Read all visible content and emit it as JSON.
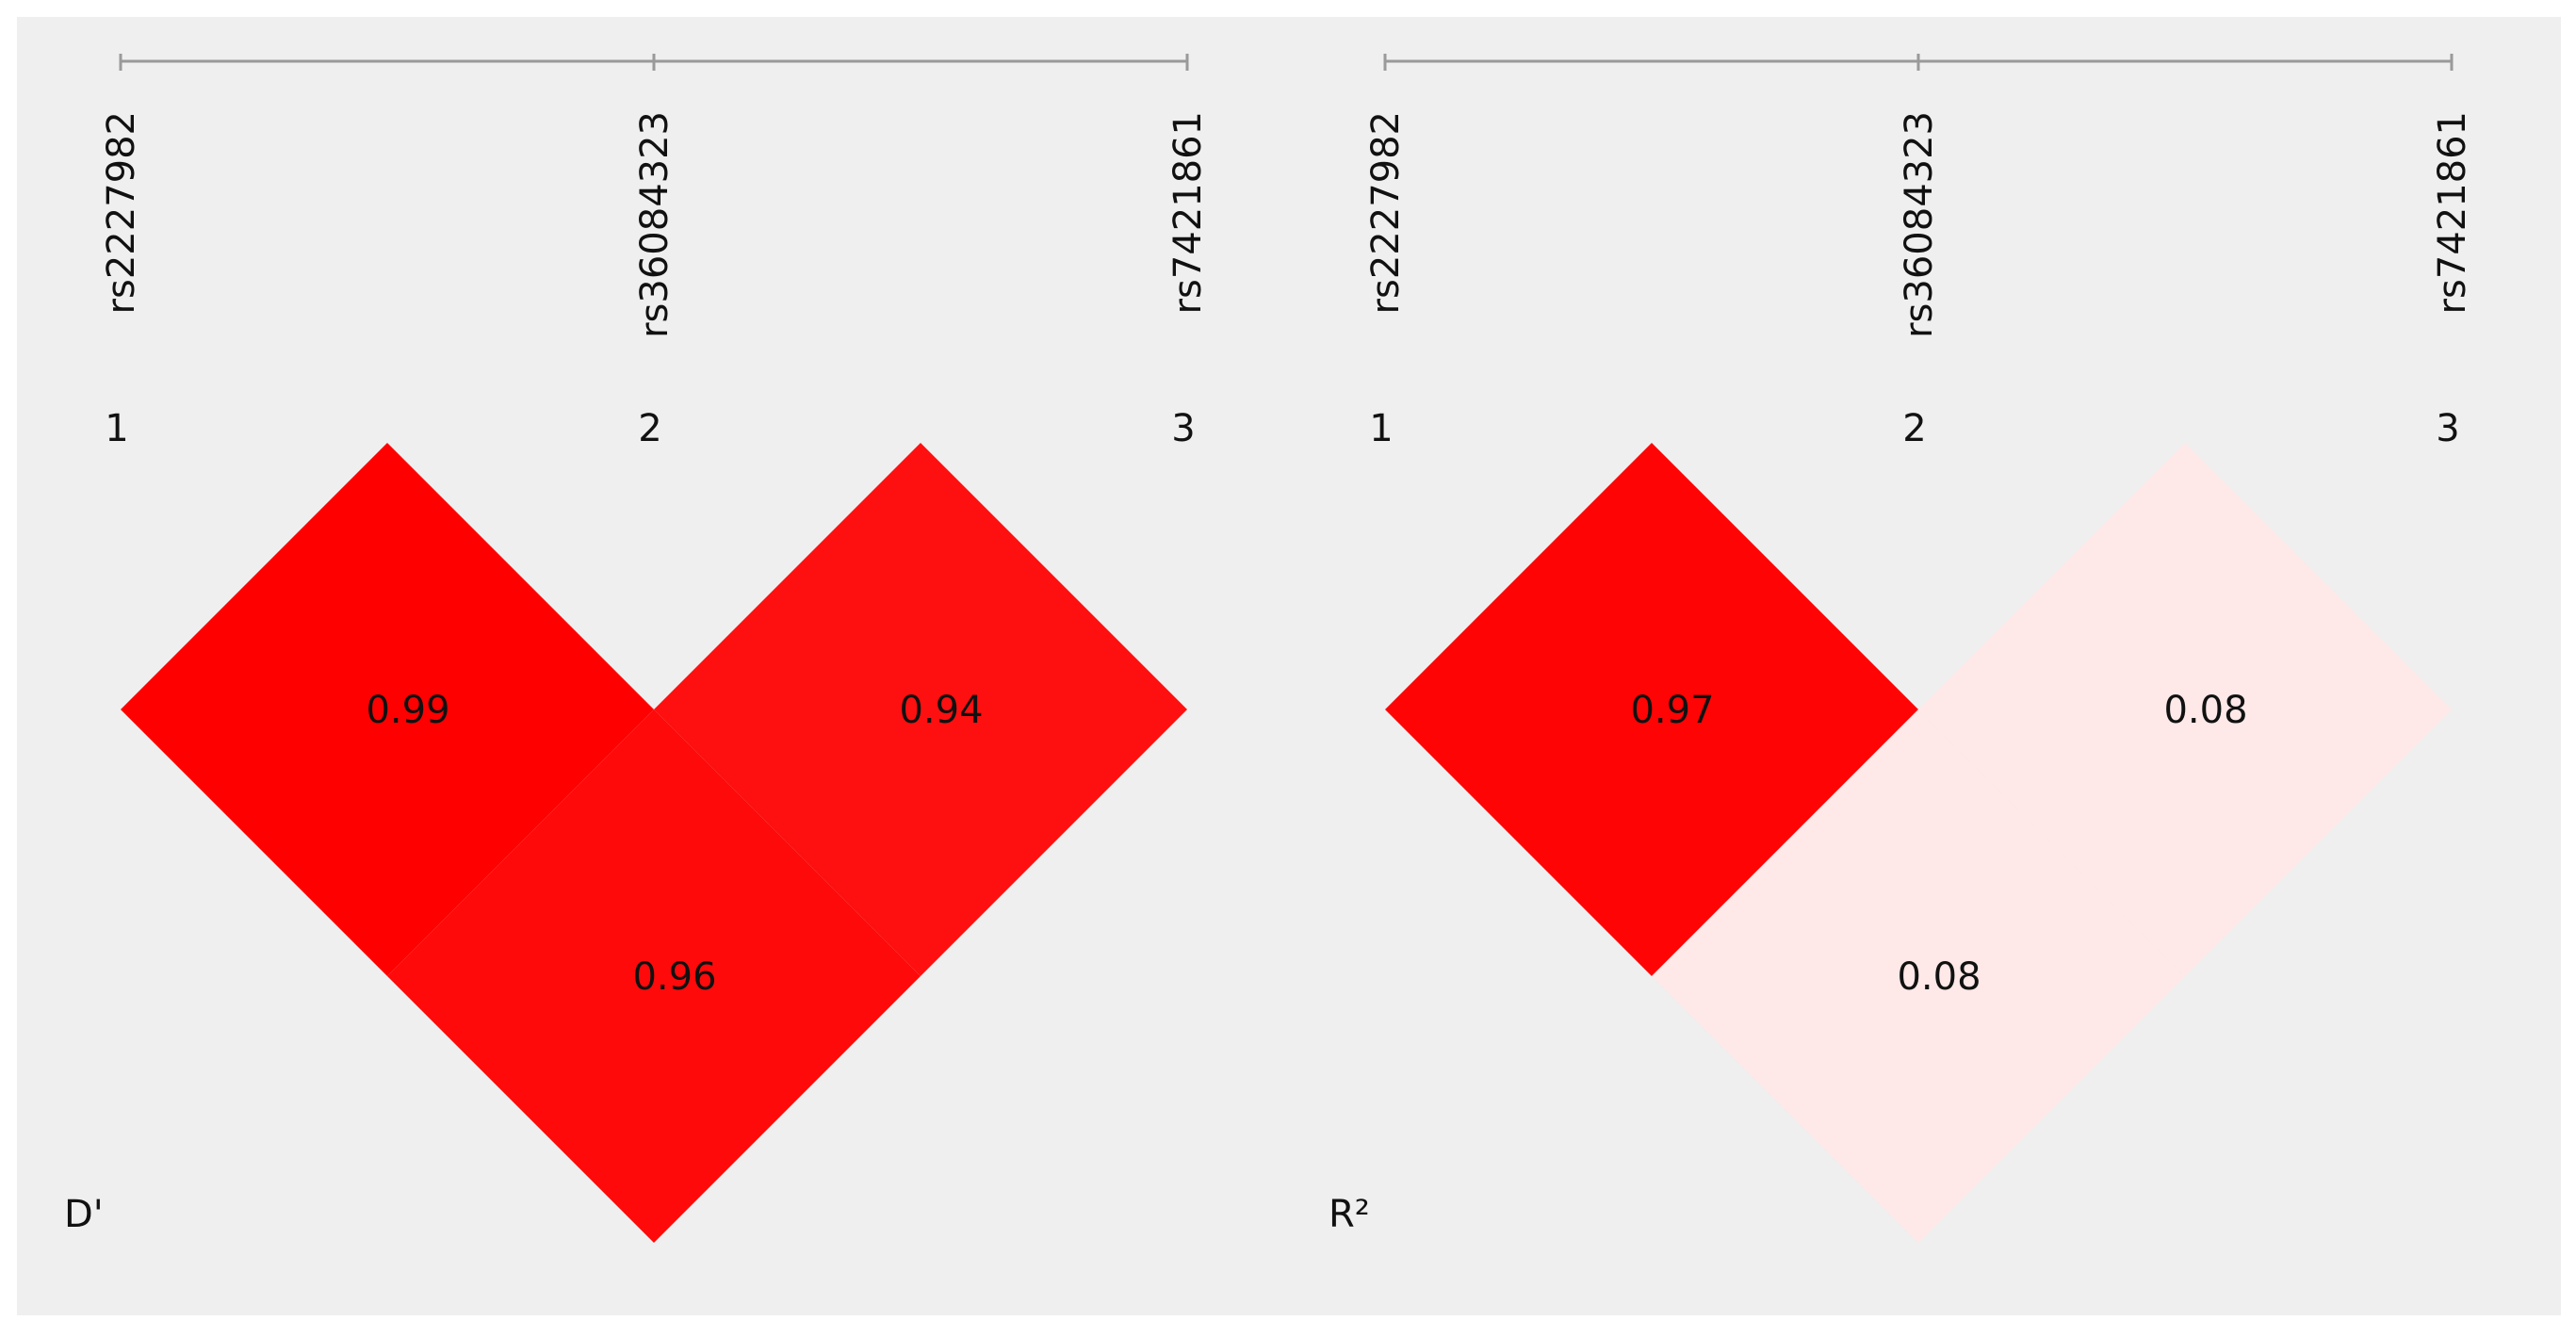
{
  "chart_data": [
    {
      "type": "heatmap",
      "statistic_label": "D'",
      "snps": [
        {
          "index": "1",
          "name": "rs2227982"
        },
        {
          "index": "2",
          "name": "rs36084323"
        },
        {
          "index": "3",
          "name": "rs7421861"
        }
      ],
      "pairs": [
        {
          "i": 1,
          "j": 2,
          "value": 0.99,
          "label": "0.99",
          "color": "#fe0000"
        },
        {
          "i": 2,
          "j": 3,
          "value": 0.94,
          "label": "0.94",
          "color": "#fe1010"
        },
        {
          "i": 1,
          "j": 3,
          "value": 0.96,
          "label": "0.96",
          "color": "#fe0a0a"
        }
      ]
    },
    {
      "type": "heatmap",
      "statistic_label": "R²",
      "snps": [
        {
          "index": "1",
          "name": "rs2227982"
        },
        {
          "index": "2",
          "name": "rs36084323"
        },
        {
          "index": "3",
          "name": "rs7421861"
        }
      ],
      "pairs": [
        {
          "i": 1,
          "j": 2,
          "value": 0.97,
          "label": "0.97",
          "color": "#fe0404"
        },
        {
          "i": 2,
          "j": 3,
          "value": 0.08,
          "label": "0.08",
          "color": "#fee8e8"
        },
        {
          "i": 1,
          "j": 3,
          "value": 0.08,
          "label": "0.08",
          "color": "#fee8e8"
        }
      ]
    }
  ],
  "colors": {
    "panel_background": "#efefef",
    "ruler": "#9a9a9a",
    "text": "#111111"
  }
}
